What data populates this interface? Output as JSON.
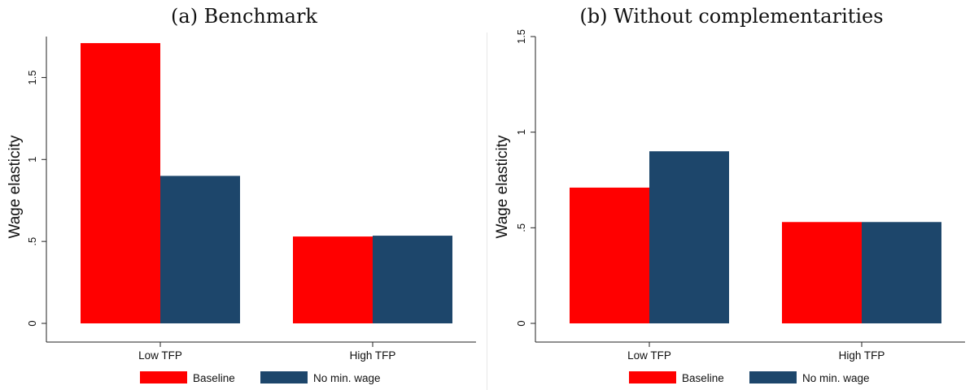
{
  "colors": {
    "baseline": "#ff0000",
    "no_min_wage": "#1d466b"
  },
  "chart_data": [
    {
      "type": "bar",
      "title": "(a) Benchmark",
      "xlabel": "",
      "ylabel": "Wage elasticity",
      "categories": [
        "Low TFP",
        "High TFP"
      ],
      "series": [
        {
          "name": "Baseline",
          "values": [
            1.71,
            0.53
          ]
        },
        {
          "name": "No min. wage",
          "values": [
            0.9,
            0.535
          ]
        }
      ],
      "ylim": [
        0,
        1.75
      ],
      "yticks": [
        0,
        0.5,
        1,
        1.5
      ],
      "ytick_labels": [
        "0",
        ".5",
        "1",
        "1.5"
      ],
      "grid": false,
      "legend_position": "bottom"
    },
    {
      "type": "bar",
      "title": "(b) Without complementarities",
      "xlabel": "",
      "ylabel": "Wage elasticity",
      "categories": [
        "Low TFP",
        "High TFP"
      ],
      "series": [
        {
          "name": "Baseline",
          "values": [
            0.71,
            0.53
          ]
        },
        {
          "name": "No min. wage",
          "values": [
            0.9,
            0.53
          ]
        }
      ],
      "ylim": [
        0,
        1.5
      ],
      "yticks": [
        0,
        0.5,
        1,
        1.5
      ],
      "ytick_labels": [
        "0",
        ".5",
        "1",
        "1.5"
      ],
      "grid": false,
      "legend_position": "bottom"
    }
  ]
}
